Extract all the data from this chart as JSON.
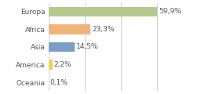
{
  "categories": [
    "Europa",
    "Africa",
    "Asia",
    "America",
    "Oceania"
  ],
  "values": [
    59.9,
    23.3,
    14.5,
    2.2,
    0.1
  ],
  "labels": [
    "59,9%",
    "23,3%",
    "14,5%",
    "2,2%",
    "0,1%"
  ],
  "bar_colors": [
    "#b5c98e",
    "#f0b47a",
    "#7b9ec7",
    "#f0d060",
    "#d0d0d0"
  ],
  "background_color": "#ffffff",
  "xlim": [
    0,
    80
  ],
  "xticks": [
    0,
    20,
    40,
    60
  ],
  "label_fontsize": 6.5,
  "tick_fontsize": 6.5,
  "grid_color": "#cccccc",
  "text_color": "#555555"
}
